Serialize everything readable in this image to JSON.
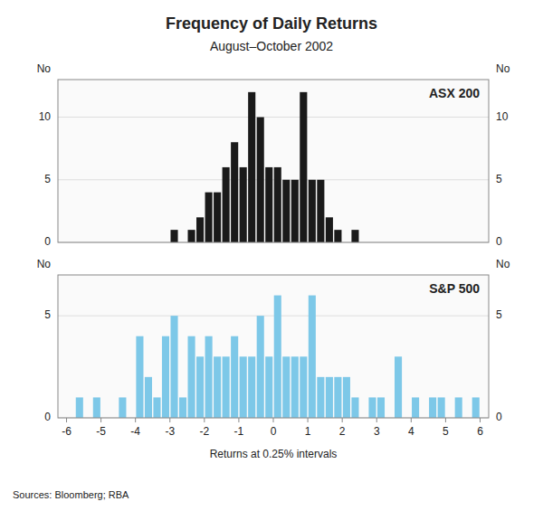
{
  "chart_data": [
    {
      "type": "bar",
      "title": "Frequency of Daily Returns",
      "subtitle": "August–October 2002",
      "source": "Sources: Bloomberg; RBA",
      "ylabel": "No",
      "y2label": "No",
      "x": [
        -5.875,
        -5.625,
        -5.375,
        -5.125,
        -4.875,
        -4.625,
        -4.375,
        -4.125,
        -3.875,
        -3.625,
        -3.375,
        -3.125,
        -2.875,
        -2.625,
        -2.375,
        -2.125,
        -1.875,
        -1.625,
        -1.375,
        -1.125,
        -0.875,
        -0.625,
        -0.375,
        -0.125,
        0.125,
        0.375,
        0.625,
        0.875,
        1.125,
        1.375,
        1.625,
        1.875,
        2.125,
        2.375,
        2.625,
        2.875,
        3.125,
        3.375,
        3.625,
        3.875,
        4.125,
        4.375,
        4.625,
        4.875,
        5.125,
        5.375,
        5.625,
        5.875
      ],
      "series": [
        {
          "name": "ASX 200",
          "color": "#1a1a1a",
          "values": [
            0,
            0,
            0,
            0,
            0,
            0,
            0,
            0,
            0,
            0,
            0,
            0,
            1,
            0,
            1,
            2,
            4,
            4,
            6,
            8,
            6,
            12,
            10,
            6,
            6,
            5,
            5,
            12,
            5,
            5,
            2,
            1,
            0,
            1,
            0,
            0,
            0,
            0,
            0,
            0,
            0,
            0,
            0,
            0,
            0,
            0,
            0,
            0
          ]
        }
      ],
      "xlim": [
        -6.25,
        6.25
      ],
      "ylim": [
        0,
        13
      ],
      "yticks": [
        0,
        5,
        10
      ],
      "y2lim": [
        0,
        13
      ],
      "y2ticks": [
        0,
        5,
        10
      ],
      "tick_labels": "y",
      "grid": true
    },
    {
      "type": "bar",
      "xlabel": "Returns at 0.25% intervals",
      "ylabel": "No",
      "y2label": "No",
      "x": [
        -5.875,
        -5.625,
        -5.375,
        -5.125,
        -4.875,
        -4.625,
        -4.375,
        -4.125,
        -3.875,
        -3.625,
        -3.375,
        -3.125,
        -2.875,
        -2.625,
        -2.375,
        -2.125,
        -1.875,
        -1.625,
        -1.375,
        -1.125,
        -0.875,
        -0.625,
        -0.375,
        -0.125,
        0.125,
        0.375,
        0.625,
        0.875,
        1.125,
        1.375,
        1.625,
        1.875,
        2.125,
        2.375,
        2.625,
        2.875,
        3.125,
        3.375,
        3.625,
        3.875,
        4.125,
        4.375,
        4.625,
        4.875,
        5.125,
        5.375,
        5.625,
        5.875
      ],
      "series": [
        {
          "name": "S&P 500",
          "color": "#7dc8e8",
          "values": [
            0,
            1,
            0,
            1,
            0,
            0,
            1,
            0,
            4,
            2,
            1,
            4,
            5,
            1,
            4,
            3,
            4,
            3,
            3,
            4,
            3,
            3,
            5,
            3,
            6,
            3,
            3,
            3,
            6,
            2,
            2,
            2,
            2,
            1,
            0,
            1,
            1,
            0,
            3,
            0,
            1,
            0,
            1,
            1,
            0,
            1,
            0,
            1
          ]
        }
      ],
      "xlim": [
        -6.25,
        6.25
      ],
      "xticks": [
        -6,
        -5,
        -4,
        -3,
        -2,
        -1,
        0,
        1,
        2,
        3,
        4,
        5,
        6
      ],
      "ylim": [
        0,
        7
      ],
      "yticks": [
        0,
        5
      ],
      "y2lim": [
        0,
        7
      ],
      "y2ticks": [
        0,
        5
      ],
      "grid": true
    }
  ]
}
